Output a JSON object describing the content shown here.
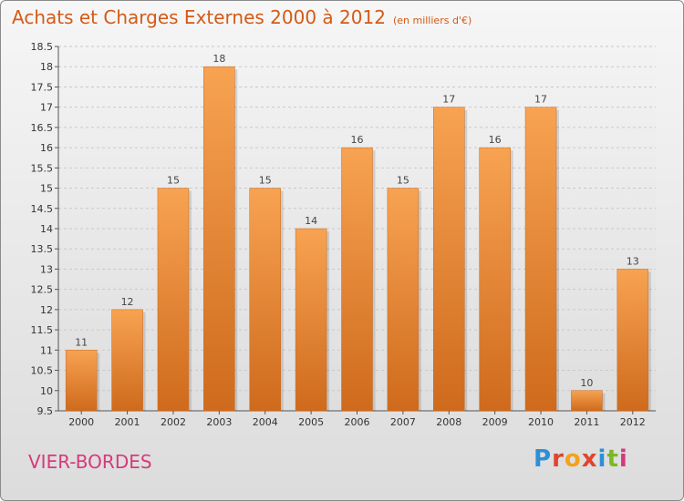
{
  "header": {
    "title": "Achats et Charges Externes 2000 à 2012",
    "subtitle": "(en milliers d'€)"
  },
  "footer": {
    "commune": "VIER-BORDES",
    "logo_letters": [
      "P",
      "r",
      "o",
      "x",
      "i",
      "t",
      "i"
    ],
    "logo_colors": [
      "#2d8fd6",
      "#e0442e",
      "#f2a21c",
      "#e0442e",
      "#2d8fd6",
      "#7cb824",
      "#d63a7a"
    ]
  },
  "colors": {
    "bar": "#f0923a",
    "title": "#d45a17",
    "commune": "#d63a7a"
  },
  "chart_data": {
    "type": "bar",
    "title": "Achats et Charges Externes 2000 à 2012",
    "subtitle": "(en milliers d'€)",
    "categories": [
      "2000",
      "2001",
      "2002",
      "2003",
      "2004",
      "2005",
      "2006",
      "2007",
      "2008",
      "2009",
      "2010",
      "2011",
      "2012"
    ],
    "values": [
      11,
      12,
      15,
      18,
      15,
      14,
      16,
      15,
      17,
      16,
      17,
      10,
      13
    ],
    "ylim": [
      9.5,
      18.5
    ],
    "yticks": [
      "9.5",
      "10",
      "10.5",
      "11",
      "11.5",
      "12",
      "12.5",
      "13",
      "13.5",
      "14",
      "14.5",
      "15",
      "15.5",
      "16",
      "16.5",
      "17",
      "17.5",
      "18",
      "18.5"
    ],
    "grid": true
  }
}
